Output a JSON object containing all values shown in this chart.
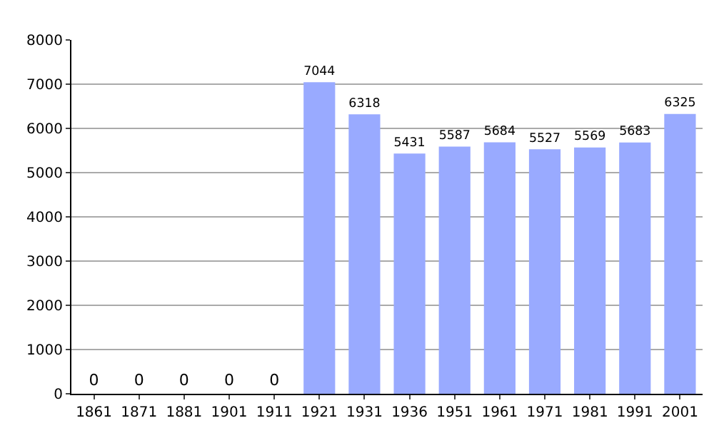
{
  "chart_data": {
    "type": "bar",
    "categories": [
      "1861",
      "1871",
      "1881",
      "1901",
      "1911",
      "1921",
      "1931",
      "1936",
      "1951",
      "1961",
      "1971",
      "1981",
      "1991",
      "2001"
    ],
    "values": [
      0,
      0,
      0,
      0,
      0,
      7044,
      6318,
      5431,
      5587,
      5684,
      5527,
      5569,
      5683,
      6325
    ],
    "color": "#99aaff",
    "ylim": [
      0,
      8000
    ],
    "yticks": [
      0,
      1000,
      2000,
      3000,
      4000,
      5000,
      6000,
      7000,
      8000
    ],
    "grid": "y",
    "data_labels": true
  }
}
